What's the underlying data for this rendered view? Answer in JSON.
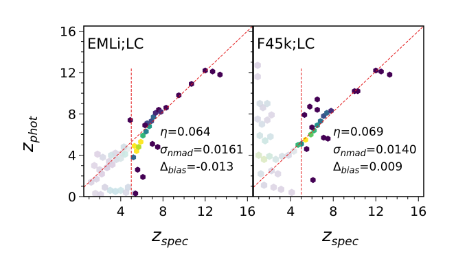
{
  "chart_data": [
    {
      "type": "scatter",
      "subtype": "hexbin",
      "title": "EMLi;LC",
      "xlabel": "z",
      "xlabel_sub": "spec",
      "ylabel": "z",
      "ylabel_sub": "phot",
      "xlim": [
        0.5,
        16.5
      ],
      "ylim": [
        0,
        16.5
      ],
      "xticks": [
        4,
        8,
        12,
        16
      ],
      "yticks": [
        0,
        4,
        8,
        12,
        16
      ],
      "one_to_one_line": true,
      "vertical_line_x": 5,
      "stats": {
        "eta": {
          "symbol": "η",
          "value": "=0.064"
        },
        "sigma_nmad": {
          "symbol": "σ",
          "sub": "nmad",
          "value": "=0.0161"
        },
        "delta_bias": {
          "symbol": "Δ",
          "sub": "bias",
          "value": "=-0.013"
        }
      },
      "colors": {
        "line": "#e31a1c",
        "low": "#440154",
        "high": "#fde725"
      },
      "points": [
        {
          "x": 1.2,
          "y": 1.4,
          "c": "#d7cfe0",
          "faint": true
        },
        {
          "x": 1.7,
          "y": 1.7,
          "c": "#d7cfe0",
          "faint": true
        },
        {
          "x": 2.2,
          "y": 2.2,
          "c": "#d9cbe1",
          "faint": true
        },
        {
          "x": 2.7,
          "y": 2.8,
          "c": "#d3c8de",
          "faint": true
        },
        {
          "x": 3.2,
          "y": 3.1,
          "c": "#d9cbe1",
          "faint": true
        },
        {
          "x": 3.6,
          "y": 3.6,
          "c": "#d5d8e4",
          "faint": true
        },
        {
          "x": 4.1,
          "y": 4.2,
          "c": "#dfe0e8",
          "faint": true
        },
        {
          "x": 4.6,
          "y": 4.6,
          "c": "#e8ecec",
          "faint": true
        },
        {
          "x": 4.4,
          "y": 4.1,
          "c": "#c9e8e3",
          "faint": true
        },
        {
          "x": 4.0,
          "y": 3.7,
          "c": "#d6e3e5",
          "faint": true
        },
        {
          "x": 3.5,
          "y": 4.2,
          "c": "#d8d2e2",
          "faint": true
        },
        {
          "x": 4.3,
          "y": 4.8,
          "c": "#cfdce4",
          "faint": true
        },
        {
          "x": 1.5,
          "y": 3.0,
          "c": "#ddd2e4",
          "faint": true
        },
        {
          "x": 1.8,
          "y": 4.1,
          "c": "#dccfe3",
          "faint": true
        },
        {
          "x": 2.3,
          "y": 3.8,
          "c": "#d6d6e4",
          "faint": true
        },
        {
          "x": 2.9,
          "y": 3.4,
          "c": "#d9d1e2",
          "faint": true
        },
        {
          "x": 2.0,
          "y": 2.6,
          "c": "#d9d1e2",
          "faint": true
        },
        {
          "x": 3.1,
          "y": 4.0,
          "c": "#ccdee3",
          "faint": true
        },
        {
          "x": 3.0,
          "y": 0.6,
          "c": "#c8e1e6",
          "faint": true
        },
        {
          "x": 3.5,
          "y": 0.5,
          "c": "#c5e0e7",
          "faint": true
        },
        {
          "x": 4.0,
          "y": 0.6,
          "c": "#cae4e7",
          "faint": true
        },
        {
          "x": 2.5,
          "y": 0.9,
          "c": "#d4d0e1",
          "faint": true
        },
        {
          "x": 4.5,
          "y": 0.4,
          "c": "#d6d6e4",
          "faint": true
        },
        {
          "x": 1.6,
          "y": 0.3,
          "c": "#dcd5e3",
          "faint": true
        },
        {
          "x": 2.1,
          "y": 0.2,
          "c": "#d8d0e3",
          "faint": true
        },
        {
          "x": 5.3,
          "y": 0.3,
          "c": "#d6d0e2",
          "faint": true
        },
        {
          "x": 4.7,
          "y": 0.9,
          "c": "#cfd7e4",
          "faint": true
        },
        {
          "x": 5.2,
          "y": 3.8,
          "c": "#31688e"
        },
        {
          "x": 5.5,
          "y": 4.4,
          "c": "#fde725"
        },
        {
          "x": 5.3,
          "y": 4.9,
          "c": "#fde725"
        },
        {
          "x": 5.7,
          "y": 4.8,
          "c": "#b5de2b"
        },
        {
          "x": 5.9,
          "y": 5.3,
          "c": "#fde725"
        },
        {
          "x": 6.1,
          "y": 5.9,
          "c": "#35b779"
        },
        {
          "x": 6.4,
          "y": 6.3,
          "c": "#26828e"
        },
        {
          "x": 6.7,
          "y": 6.8,
          "c": "#1f9e89"
        },
        {
          "x": 6.9,
          "y": 7.3,
          "c": "#3e4989"
        },
        {
          "x": 7.1,
          "y": 7.7,
          "c": "#31688e"
        },
        {
          "x": 7.3,
          "y": 8.1,
          "c": "#482878"
        },
        {
          "x": 6.5,
          "y": 7.1,
          "c": "#3e4989"
        },
        {
          "x": 7.6,
          "y": 8.4,
          "c": "#440154"
        },
        {
          "x": 7.8,
          "y": 8.2,
          "c": "#482878"
        },
        {
          "x": 6.3,
          "y": 6.9,
          "c": "#440154"
        },
        {
          "x": 4.9,
          "y": 7.4,
          "c": "#440154"
        },
        {
          "x": 5.6,
          "y": 2.6,
          "c": "#440154"
        },
        {
          "x": 6.1,
          "y": 1.9,
          "c": "#440154"
        },
        {
          "x": 5.4,
          "y": 0.3,
          "c": "#440154"
        },
        {
          "x": 8.3,
          "y": 8.6,
          "c": "#440154"
        },
        {
          "x": 9.5,
          "y": 9.8,
          "c": "#440154"
        },
        {
          "x": 10.7,
          "y": 10.9,
          "c": "#440154"
        },
        {
          "x": 12.0,
          "y": 12.2,
          "c": "#440154"
        },
        {
          "x": 12.7,
          "y": 12.1,
          "c": "#440154"
        },
        {
          "x": 13.4,
          "y": 11.8,
          "c": "#440154"
        },
        {
          "x": 7.0,
          "y": 5.1,
          "c": "#440154"
        },
        {
          "x": 7.5,
          "y": 4.8,
          "c": "#440154"
        }
      ]
    },
    {
      "type": "scatter",
      "subtype": "hexbin",
      "title": "F45k;LC",
      "xlabel": "z",
      "xlabel_sub": "spec",
      "ylabel": "",
      "xlim": [
        0.5,
        16.5
      ],
      "ylim": [
        0,
        16.5
      ],
      "xticks": [
        4,
        8,
        12,
        16
      ],
      "one_to_one_line": true,
      "vertical_line_x": 5,
      "stats": {
        "eta": {
          "symbol": "η",
          "value": "=0.069"
        },
        "sigma_nmad": {
          "symbol": "σ",
          "sub": "nmad",
          "value": "=0.0140"
        },
        "delta_bias": {
          "symbol": "Δ",
          "sub": "bias",
          "value": "=0.009"
        }
      },
      "colors": {
        "line": "#e31a1c",
        "low": "#440154",
        "high": "#fde725"
      },
      "points": [
        {
          "x": 0.9,
          "y": 12.7,
          "c": "#d8cfe2",
          "faint": true
        },
        {
          "x": 0.9,
          "y": 11.6,
          "c": "#dcd3e4",
          "faint": true
        },
        {
          "x": 1.1,
          "y": 9.0,
          "c": "#d2dbe3",
          "faint": true
        },
        {
          "x": 1.4,
          "y": 8.6,
          "c": "#d6d2e2",
          "faint": true
        },
        {
          "x": 1.8,
          "y": 9.0,
          "c": "#cfdce3",
          "faint": true
        },
        {
          "x": 0.9,
          "y": 7.5,
          "c": "#d7d7e5",
          "faint": true
        },
        {
          "x": 1.3,
          "y": 7.0,
          "c": "#d2dce5",
          "faint": true
        },
        {
          "x": 1.8,
          "y": 7.4,
          "c": "#d9d4e3",
          "faint": true
        },
        {
          "x": 2.2,
          "y": 7.9,
          "c": "#dad3e4",
          "faint": true
        },
        {
          "x": 1.1,
          "y": 5.9,
          "c": "#cfe2e3",
          "faint": true
        },
        {
          "x": 1.6,
          "y": 5.4,
          "c": "#c9e4e1",
          "faint": true
        },
        {
          "x": 2.1,
          "y": 5.8,
          "c": "#cfe0e5",
          "faint": true
        },
        {
          "x": 1.0,
          "y": 4.0,
          "c": "#d8e7c6",
          "faint": true
        },
        {
          "x": 1.5,
          "y": 3.6,
          "c": "#dbe9c0",
          "faint": true
        },
        {
          "x": 2.0,
          "y": 3.9,
          "c": "#cde6d9",
          "faint": true
        },
        {
          "x": 2.6,
          "y": 3.6,
          "c": "#d1e3e3",
          "faint": true
        },
        {
          "x": 3.2,
          "y": 3.9,
          "c": "#d4dde4",
          "faint": true
        },
        {
          "x": 3.8,
          "y": 4.0,
          "c": "#d7d6e4",
          "faint": true
        },
        {
          "x": 2.2,
          "y": 2.5,
          "c": "#d7d4e3",
          "faint": true
        },
        {
          "x": 2.8,
          "y": 2.2,
          "c": "#dbd4e4",
          "faint": true
        },
        {
          "x": 1.2,
          "y": 2.2,
          "c": "#d2dde4",
          "faint": true
        },
        {
          "x": 1.5,
          "y": 1.1,
          "c": "#d6d3e2",
          "faint": true
        },
        {
          "x": 2.4,
          "y": 0.9,
          "c": "#dad2e3",
          "faint": true
        },
        {
          "x": 3.1,
          "y": 0.7,
          "c": "#d9d0e2",
          "faint": true
        },
        {
          "x": 4.3,
          "y": 4.4,
          "c": "#dde3e8",
          "faint": true
        },
        {
          "x": 4.1,
          "y": 0.4,
          "c": "#dad0e2",
          "faint": true
        },
        {
          "x": 5.0,
          "y": 5.1,
          "c": "#21918c"
        },
        {
          "x": 5.4,
          "y": 5.5,
          "c": "#fde725"
        },
        {
          "x": 5.9,
          "y": 6.0,
          "c": "#5ec962"
        },
        {
          "x": 6.2,
          "y": 6.4,
          "c": "#35b779"
        },
        {
          "x": 6.5,
          "y": 6.9,
          "c": "#21918c"
        },
        {
          "x": 6.8,
          "y": 7.3,
          "c": "#2c728e"
        },
        {
          "x": 7.1,
          "y": 7.8,
          "c": "#3b528b"
        },
        {
          "x": 7.4,
          "y": 8.1,
          "c": "#31688e"
        },
        {
          "x": 7.8,
          "y": 8.3,
          "c": "#472d7b"
        },
        {
          "x": 6.0,
          "y": 6.7,
          "c": "#440154"
        },
        {
          "x": 5.5,
          "y": 4.6,
          "c": "#440154"
        },
        {
          "x": 6.1,
          "y": 1.6,
          "c": "#440154"
        },
        {
          "x": 5.8,
          "y": 8.7,
          "c": "#440154"
        },
        {
          "x": 5.3,
          "y": 7.9,
          "c": "#440154"
        },
        {
          "x": 6.5,
          "y": 8.4,
          "c": "#440154"
        },
        {
          "x": 6.5,
          "y": 9.4,
          "c": "#440154"
        },
        {
          "x": 7.1,
          "y": 5.7,
          "c": "#440154"
        },
        {
          "x": 7.5,
          "y": 5.6,
          "c": "#440154"
        },
        {
          "x": 10.0,
          "y": 10.2,
          "c": "#440154"
        },
        {
          "x": 10.3,
          "y": 10.2,
          "c": "#440154"
        },
        {
          "x": 12.0,
          "y": 12.2,
          "c": "#440154"
        },
        {
          "x": 12.5,
          "y": 12.1,
          "c": "#440154"
        },
        {
          "x": 13.3,
          "y": 11.8,
          "c": "#440154"
        },
        {
          "x": 4.7,
          "y": 5.0,
          "c": "#35b779"
        }
      ]
    }
  ]
}
